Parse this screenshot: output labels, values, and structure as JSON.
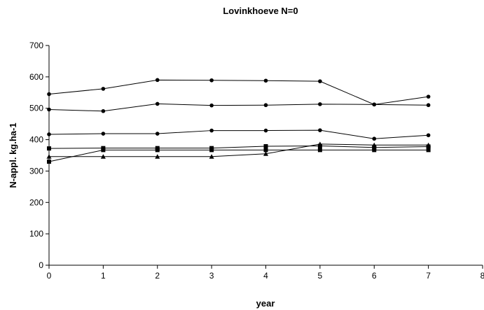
{
  "chart_data": {
    "type": "line",
    "title": "Lovinkhoeve N=0",
    "xlabel": "year",
    "ylabel": "N-appl. kg.ha-1",
    "xlim": [
      0,
      8
    ],
    "ylim": [
      0,
      700
    ],
    "xticks": [
      "0",
      "1",
      "2",
      "3",
      "4",
      "5",
      "6",
      "7",
      "8"
    ],
    "yticks": [
      "0",
      "100",
      "200",
      "300",
      "400",
      "500",
      "600",
      "700"
    ],
    "grid": false,
    "legend": "none",
    "line_color": "#000000",
    "series": [
      {
        "marker": "circle",
        "x": [
          0,
          1,
          2,
          3,
          4,
          5,
          6,
          7
        ],
        "values": [
          545,
          562,
          590,
          589,
          588,
          586,
          512,
          537
        ]
      },
      {
        "marker": "circle",
        "x": [
          0,
          1,
          2,
          3,
          4,
          5,
          6,
          7
        ],
        "values": [
          496,
          491,
          514,
          509,
          510,
          513,
          512,
          510
        ]
      },
      {
        "marker": "circle",
        "x": [
          0,
          1,
          2,
          3,
          4,
          5,
          6,
          7
        ],
        "values": [
          417,
          419,
          419,
          429,
          429,
          430,
          403,
          414
        ]
      },
      {
        "marker": "square",
        "x": [
          0,
          1,
          2,
          3,
          4,
          5,
          6,
          7
        ],
        "values": [
          372,
          373,
          373,
          373,
          379,
          380,
          375,
          378
        ]
      },
      {
        "marker": "triangle",
        "x": [
          0,
          1,
          2,
          3,
          4,
          5,
          6,
          7
        ],
        "values": [
          346,
          346,
          346,
          346,
          355,
          386,
          383,
          383
        ]
      },
      {
        "marker": "square",
        "x": [
          0,
          1,
          2,
          3,
          4,
          5,
          6,
          7
        ],
        "values": [
          330,
          367,
          367,
          367,
          367,
          367,
          367,
          367
        ]
      }
    ]
  }
}
